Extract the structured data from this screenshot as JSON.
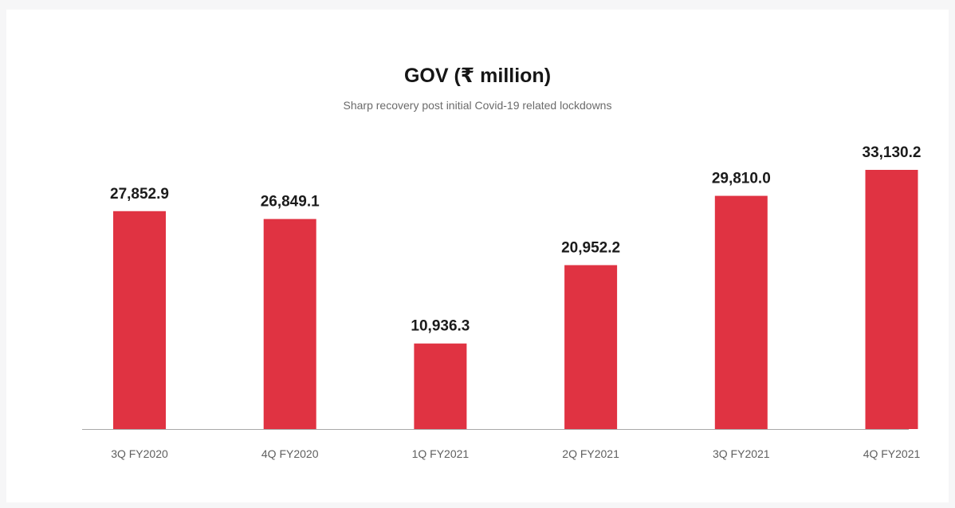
{
  "colors": {
    "bar": "#e03342",
    "axis": "#a9a9a9",
    "background": "#ffffff"
  },
  "chart_data": {
    "type": "bar",
    "title": "GOV (₹ million)",
    "subtitle": "Sharp recovery post initial Covid-19 related lockdowns",
    "categories": [
      "3Q FY2020",
      "4Q FY2020",
      "1Q FY2021",
      "2Q FY2021",
      "3Q FY2021",
      "4Q FY2021"
    ],
    "values": [
      27852.9,
      26849.1,
      10936.3,
      20952.2,
      29810.0,
      33130.2
    ],
    "value_labels": [
      "27,852.9",
      "26,849.1",
      "10,936.3",
      "20,952.2",
      "29,810.0",
      "33,130.2"
    ],
    "xlabel": "",
    "ylabel": "",
    "ylim": [
      0,
      35000
    ],
    "grid": false,
    "legend": "none"
  }
}
